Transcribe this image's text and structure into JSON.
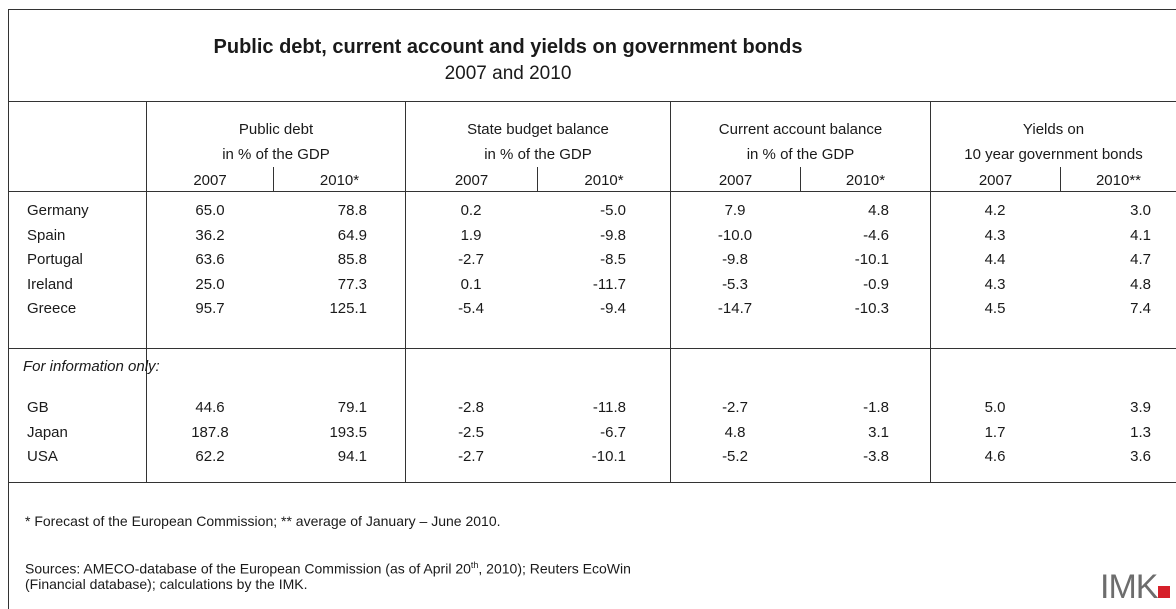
{
  "title": "Public debt, current account and yields on government bonds",
  "subtitle": "2007 and 2010",
  "groups": [
    {
      "line1": "Public debt",
      "line2": "in % of the GDP",
      "y1": "2007",
      "y2": "2010*"
    },
    {
      "line1": "State budget balance",
      "line2": "in % of the GDP",
      "y1": "2007",
      "y2": "2010*"
    },
    {
      "line1": "Current account balance",
      "line2": "in % of the GDP",
      "y1": "2007",
      "y2": "2010*"
    },
    {
      "line1": "Yields on",
      "line2": "10 year government bonds",
      "y1": "2007",
      "y2": "2010**"
    }
  ],
  "rows_main": [
    {
      "country": "Germany",
      "values": [
        "65.0",
        "78.8",
        "0.2",
        "-5.0",
        "7.9",
        "4.8",
        "4.2",
        "3.0"
      ]
    },
    {
      "country": "Spain",
      "values": [
        "36.2",
        "64.9",
        "1.9",
        "-9.8",
        "-10.0",
        "-4.6",
        "4.3",
        "4.1"
      ]
    },
    {
      "country": "Portugal",
      "values": [
        "63.6",
        "85.8",
        "-2.7",
        "-8.5",
        "-9.8",
        "-10.1",
        "4.4",
        "4.7"
      ]
    },
    {
      "country": "Ireland",
      "values": [
        "25.0",
        "77.3",
        "0.1",
        "-11.7",
        "-5.3",
        "-0.9",
        "4.3",
        "4.8"
      ]
    },
    {
      "country": "Greece",
      "values": [
        "95.7",
        "125.1",
        "-5.4",
        "-9.4",
        "-14.7",
        "-10.3",
        "4.5",
        "7.4"
      ]
    }
  ],
  "info_label": "For information only:",
  "rows_info": [
    {
      "country": "GB",
      "values": [
        "44.6",
        "79.1",
        "-2.8",
        "-11.8",
        "-2.7",
        "-1.8",
        "5.0",
        "3.9"
      ]
    },
    {
      "country": "Japan",
      "values": [
        "187.8",
        "193.5",
        "-2.5",
        "-6.7",
        "4.8",
        "3.1",
        "1.7",
        "1.3"
      ]
    },
    {
      "country": "USA",
      "values": [
        "62.2",
        "94.1",
        "-2.7",
        "-10.1",
        "-5.2",
        "-3.8",
        "4.6",
        "3.6"
      ]
    }
  ],
  "footnote": "* Forecast of the European Commission; ** average of January – June 2010.",
  "sources_line1_a": "Sources: AMECO-database of the European Commission (as of April 20",
  "sources_line1_sup": "th",
  "sources_line1_b": ", 2010); Reuters EcoWin",
  "sources_line2": "(Financial database); calculations by the IMK.",
  "logo_text": "IMK",
  "corner_mark": "...",
  "colors": {
    "logo_gray": "#6d6d6d",
    "logo_red": "#d6202a",
    "rule": "#333333"
  }
}
